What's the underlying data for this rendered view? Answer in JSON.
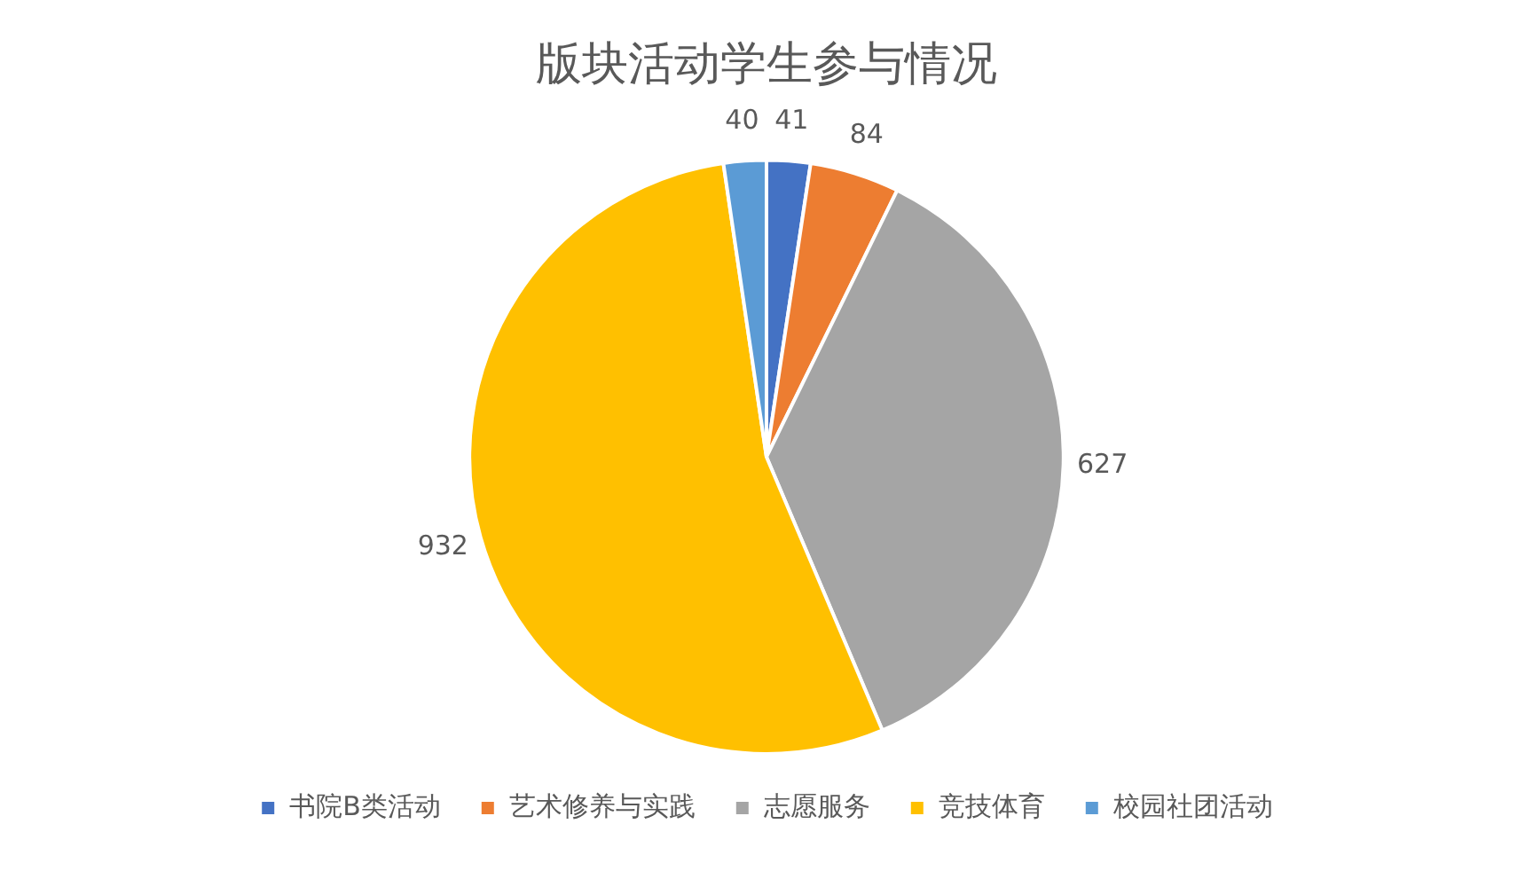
{
  "chart_data": {
    "type": "pie",
    "title": "版块活动学生参与情况",
    "categories": [
      "书院B类活动",
      "艺术修养与实践",
      "志愿服务",
      "竞技体育",
      "校园社团活动"
    ],
    "values": [
      41,
      84,
      627,
      932,
      40
    ],
    "colors": [
      "#4472c4",
      "#ed7d31",
      "#a5a5a5",
      "#ffc000",
      "#5b9bd5"
    ],
    "data_labels": true,
    "legend": "bottom"
  }
}
